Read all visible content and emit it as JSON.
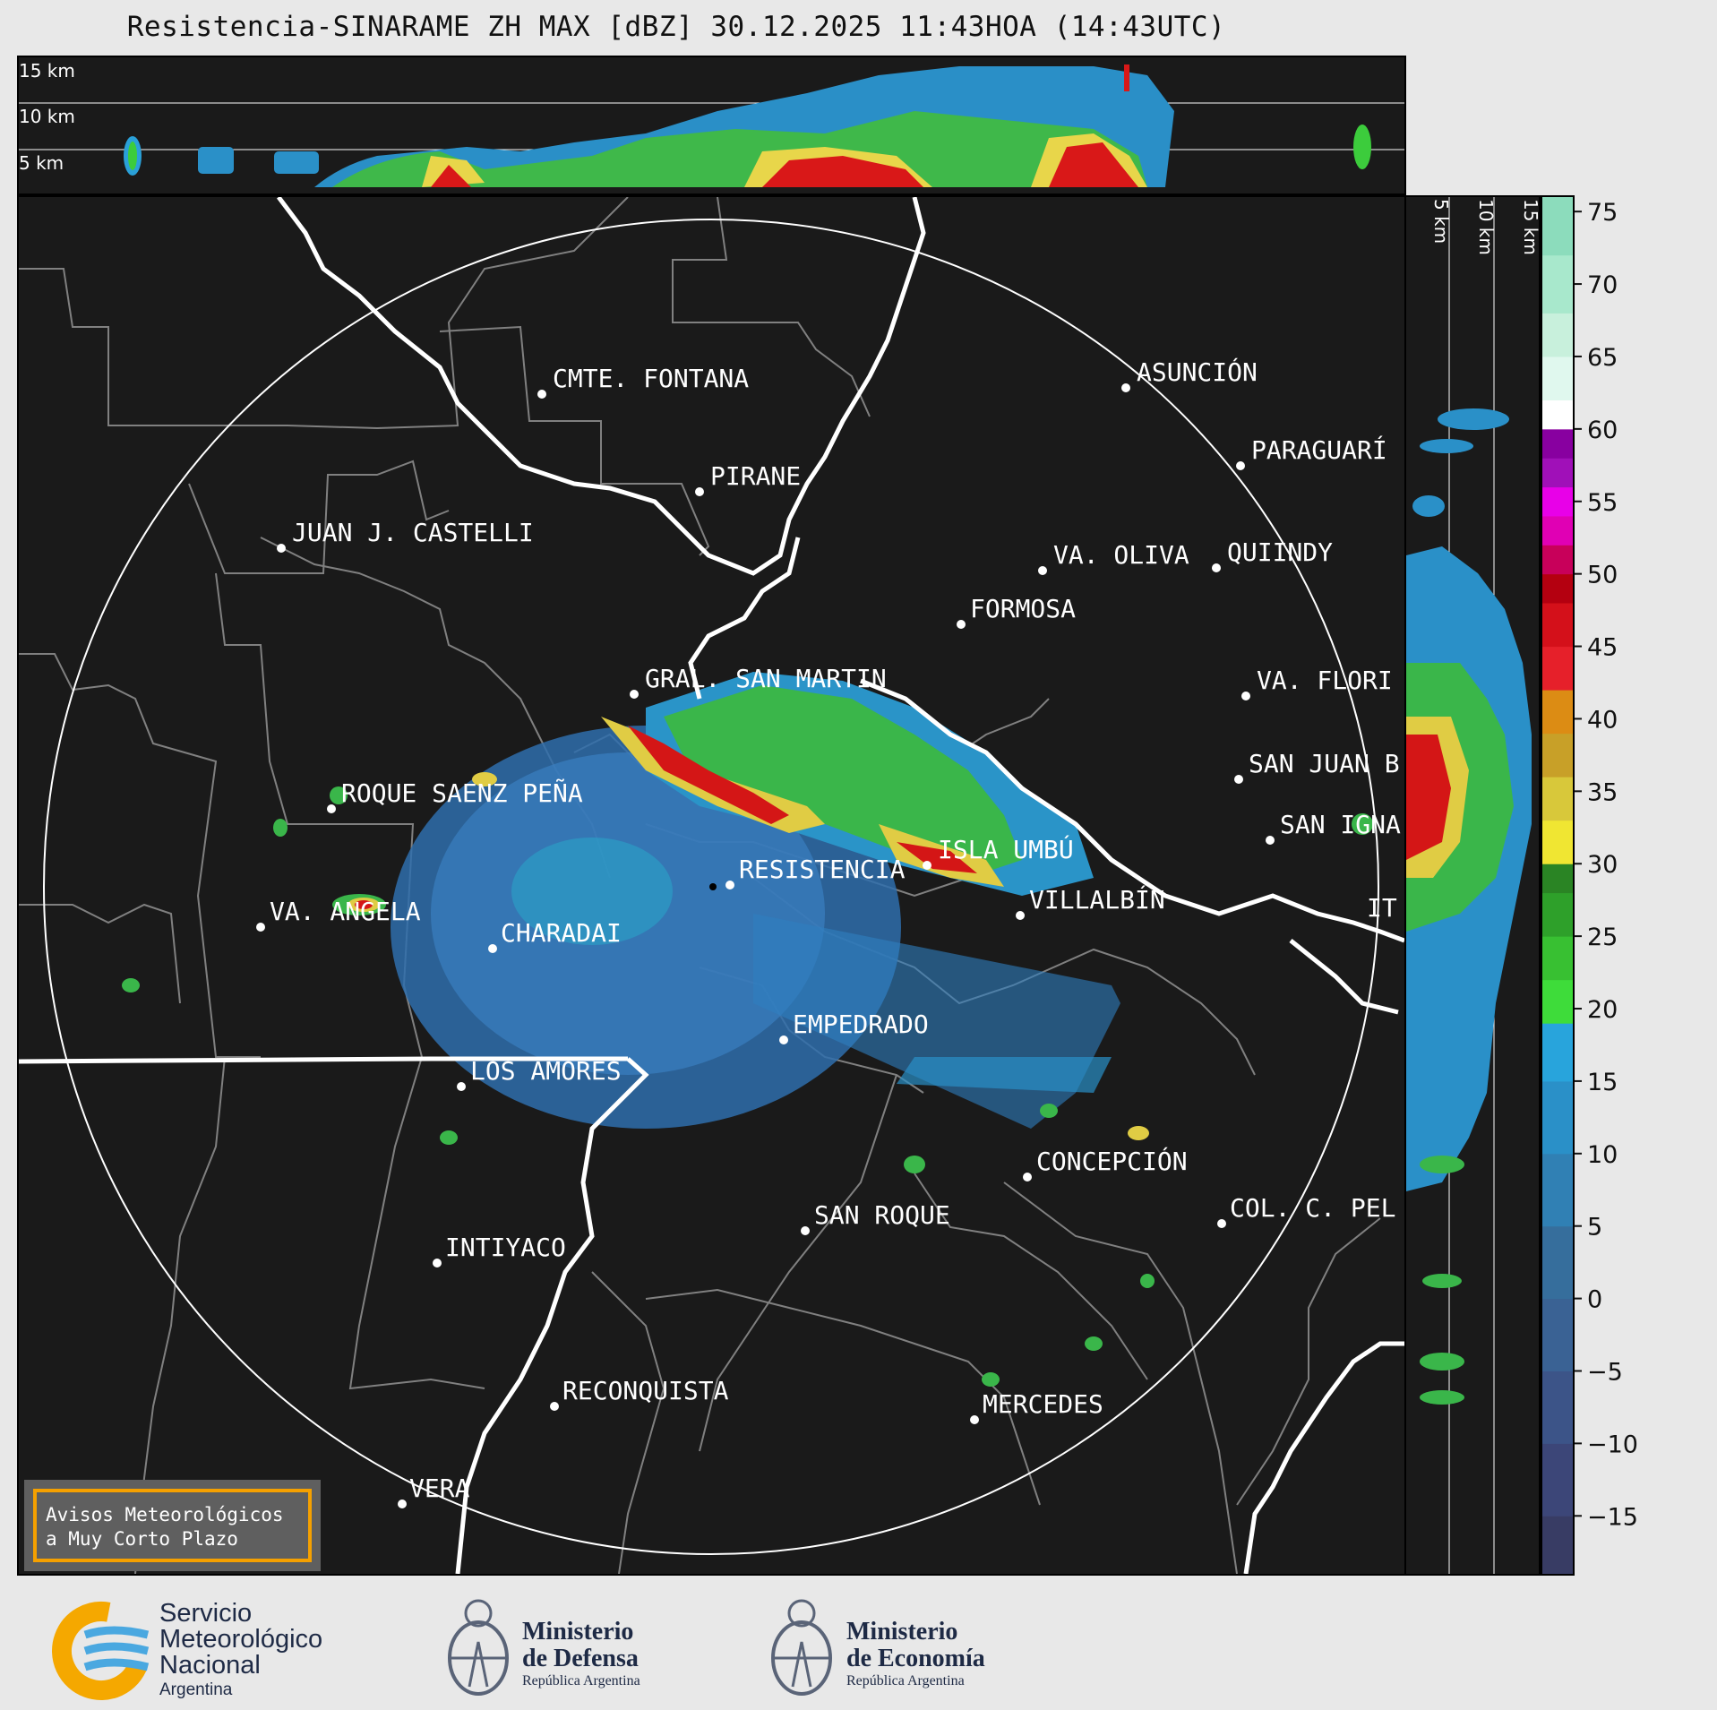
{
  "title": "Resistencia-SINARAME ZH MAX [dBZ] 30.12.2025 11:43HOA (14:43UTC)",
  "top_profile": {
    "altitude_labels": [
      "15 km",
      "10 km",
      "5 km"
    ]
  },
  "side_profile": {
    "altitude_labels": [
      "5 km",
      "10 km",
      "15 km"
    ]
  },
  "cities": [
    {
      "name": "CMTE. FONTANA",
      "lon_idx": 0
    },
    {
      "name": "PIRANE"
    },
    {
      "name": "JUAN J. CASTELLI"
    },
    {
      "name": "ASUNCIÓN"
    },
    {
      "name": "PARAGUARÍ"
    },
    {
      "name": "VA. OLIVA"
    },
    {
      "name": "QUIINDY"
    },
    {
      "name": "FORMOSA"
    },
    {
      "name": "VA. FLORI"
    },
    {
      "name": "GRAL. SAN MARTIN"
    },
    {
      "name": "SAN JUAN B"
    },
    {
      "name": "ROQUE SAENZ PEÑA"
    },
    {
      "name": "SAN IGNA"
    },
    {
      "name": "ISLA UMBÚ"
    },
    {
      "name": "VILLALBÍN"
    },
    {
      "name": "RESISTENCIA"
    },
    {
      "name": "VA. ANGELA"
    },
    {
      "name": "CHARADAI"
    },
    {
      "name": "IT"
    },
    {
      "name": "EMPEDRADO"
    },
    {
      "name": "LOS AMORES"
    },
    {
      "name": "CONCEPCIÓN"
    },
    {
      "name": "SAN ROQUE"
    },
    {
      "name": "COL. C. PEL"
    },
    {
      "name": "INTIYACO"
    },
    {
      "name": "RECONQUISTA"
    },
    {
      "name": "MERCEDES"
    },
    {
      "name": "VERA"
    }
  ],
  "colorbar": {
    "unit": "dBZ",
    "min": -19,
    "max": 76,
    "ticks": [
      "75",
      "70",
      "65",
      "60",
      "55",
      "50",
      "45",
      "40",
      "35",
      "30",
      "25",
      "20",
      "15",
      "10",
      "5",
      "0",
      "−5",
      "−10",
      "−15"
    ]
  },
  "warning": {
    "line1": "Avisos Meteorológicos",
    "line2": "a Muy Corto Plazo"
  },
  "footer": {
    "smn": {
      "line1": "Servicio",
      "line2": "Meteorológico",
      "line3": "Nacional",
      "line4": "Argentina"
    },
    "defensa": {
      "line1": "Ministerio",
      "line2": "de Defensa",
      "line3": "República Argentina"
    },
    "economia": {
      "line1": "Ministerio",
      "line2": "de Economía",
      "line3": "República Argentina"
    }
  }
}
